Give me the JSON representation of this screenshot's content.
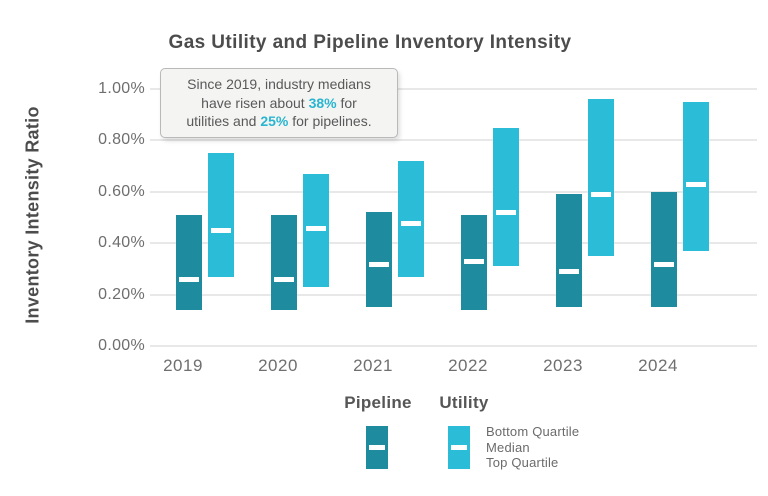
{
  "title": "Gas Utility and Pipeline Inventory Intensity",
  "annotation": {
    "lines": [
      [
        {
          "t": "Since 2019, industry medians",
          "hl": false
        }
      ],
      [
        {
          "t": "have risen about ",
          "hl": false
        },
        {
          "t": "38%",
          "hl": true
        },
        {
          "t": " for",
          "hl": false
        }
      ],
      [
        {
          "t": "utilities and ",
          "hl": false
        },
        {
          "t": "25%",
          "hl": true
        },
        {
          "t": " for pipelines.",
          "hl": false
        }
      ]
    ],
    "highlight_color": "#29b5d0"
  },
  "chart_data": {
    "type": "bar",
    "subtype": "floating-quartile-range-bars",
    "title": "Gas Utility and Pipeline Inventory Intensity",
    "ylabel": "Inventory Intensity Ratio",
    "xlabel": "",
    "y_unit": "%",
    "ylim": [
      0,
      1.0
    ],
    "grid": true,
    "legend_position": "bottom",
    "median_marker_color": "#ffffff",
    "yticks": [
      {
        "label": "1.00%",
        "value": 1.0
      },
      {
        "label": "0.80%",
        "value": 0.8
      },
      {
        "label": "0.60%",
        "value": 0.6
      },
      {
        "label": "0.40%",
        "value": 0.4
      },
      {
        "label": "0.20%",
        "value": 0.2
      },
      {
        "label": "0.00%",
        "value": 0.0
      }
    ],
    "categories": [
      "2019",
      "2020",
      "2021",
      "2022",
      "2023",
      "2024"
    ],
    "series": [
      {
        "name": "Pipeline",
        "color": "#1f8b9e",
        "bars": [
          {
            "bottom_quartile": 0.14,
            "median": 0.26,
            "top_quartile": 0.51
          },
          {
            "bottom_quartile": 0.14,
            "median": 0.26,
            "top_quartile": 0.51
          },
          {
            "bottom_quartile": 0.15,
            "median": 0.32,
            "top_quartile": 0.52
          },
          {
            "bottom_quartile": 0.14,
            "median": 0.33,
            "top_quartile": 0.51
          },
          {
            "bottom_quartile": 0.15,
            "median": 0.29,
            "top_quartile": 0.59
          },
          {
            "bottom_quartile": 0.15,
            "median": 0.32,
            "top_quartile": 0.6
          }
        ]
      },
      {
        "name": "Utility",
        "color": "#2bbdd8",
        "bars": [
          {
            "bottom_quartile": 0.27,
            "median": 0.45,
            "top_quartile": 0.75
          },
          {
            "bottom_quartile": 0.23,
            "median": 0.46,
            "top_quartile": 0.67
          },
          {
            "bottom_quartile": 0.27,
            "median": 0.48,
            "top_quartile": 0.72
          },
          {
            "bottom_quartile": 0.31,
            "median": 0.52,
            "top_quartile": 0.85
          },
          {
            "bottom_quartile": 0.35,
            "median": 0.59,
            "top_quartile": 0.96
          },
          {
            "bottom_quartile": 0.37,
            "median": 0.63,
            "top_quartile": 0.95
          }
        ]
      }
    ]
  },
  "legend": {
    "series": [
      {
        "label": "Pipeline",
        "color": "#1f8b9e"
      },
      {
        "label": "Utility",
        "color": "#2bbdd8"
      }
    ],
    "key_labels": [
      "Bottom Quartile",
      "Median",
      "Top Quartile"
    ]
  }
}
